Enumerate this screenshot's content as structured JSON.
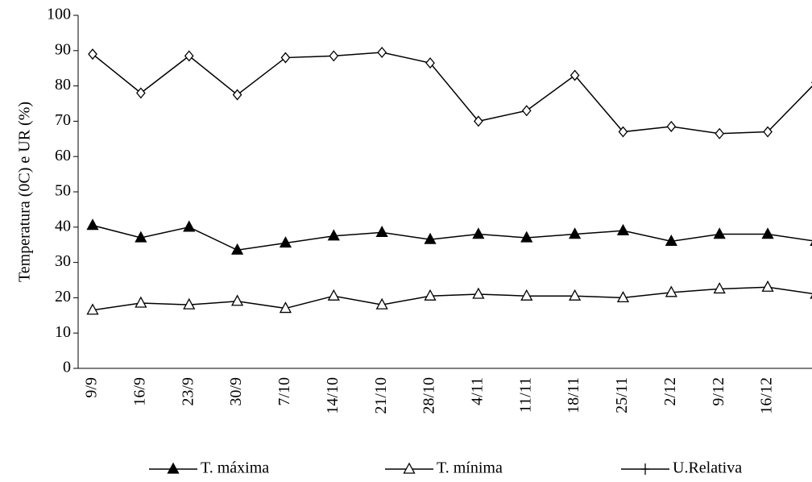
{
  "chart_data": {
    "type": "line",
    "y_label": "Temperatura (0C) e UR (%)",
    "categories": [
      "9/9",
      "16/9",
      "23/9",
      "30/9",
      "7/10",
      "14/10",
      "21/10",
      "28/10",
      "4/11",
      "11/11",
      "18/11",
      "25/11",
      "2/12",
      "9/12",
      "16/12",
      null
    ],
    "series": [
      {
        "name": "T. máxima",
        "color": "#000000",
        "marker": "filled-triangle",
        "values": [
          40.5,
          37,
          40,
          33.5,
          35.5,
          37.5,
          38.5,
          36.5,
          38,
          37,
          38,
          39,
          36,
          38,
          38,
          36
        ]
      },
      {
        "name": "T. mínima",
        "color": "#000000",
        "marker": "open-triangle",
        "values": [
          16.5,
          18.5,
          18,
          19,
          17,
          20.5,
          18,
          20.5,
          21,
          20.5,
          20.5,
          20,
          21.5,
          22.5,
          23,
          21
        ]
      },
      {
        "name": "U.Relativa",
        "color": "#000000",
        "marker": "tick",
        "values": [
          89,
          78,
          88.5,
          77.5,
          88,
          88.5,
          89.5,
          86.5,
          70,
          73,
          83,
          67,
          68.5,
          66.5,
          67,
          81
        ]
      }
    ],
    "ylim": [
      0,
      100
    ],
    "yticks": [
      0,
      10,
      20,
      30,
      40,
      50,
      60,
      70,
      80,
      90,
      100
    ],
    "legend": "bottom"
  }
}
